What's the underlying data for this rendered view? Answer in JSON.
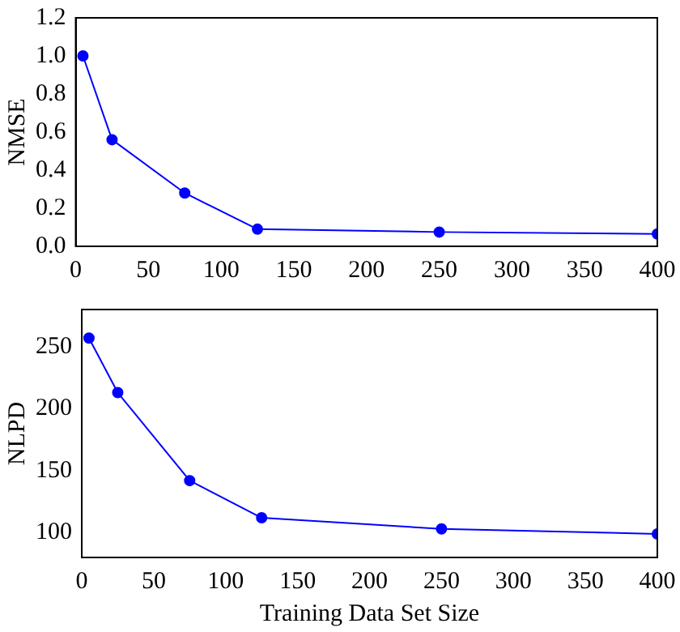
{
  "chart_data": [
    {
      "type": "line",
      "ylabel": "NMSE",
      "x": [
        5,
        25,
        75,
        125,
        250,
        400
      ],
      "series": [
        {
          "color": "#0000ff",
          "values": [
            1.0,
            0.56,
            0.28,
            0.09,
            0.075,
            0.065
          ]
        }
      ],
      "xlim": [
        0,
        400
      ],
      "xticks": [
        0,
        50,
        100,
        150,
        200,
        250,
        300,
        350,
        400
      ],
      "ylim": [
        0,
        1.2
      ],
      "yticks": [
        {
          "value": 0,
          "label": "0.0"
        },
        0.2,
        0.4,
        0.6,
        0.8,
        {
          "value": 1,
          "label": "1.0"
        },
        1.2
      ],
      "grid": false,
      "legend": false,
      "marker": "circle",
      "line_style": "solid"
    },
    {
      "type": "line",
      "xlabel": "Training Data Set Size",
      "ylabel": "NLPD",
      "x": [
        5,
        25,
        75,
        125,
        250,
        400
      ],
      "series": [
        {
          "color": "#0000ff",
          "values": [
            257,
            213,
            142,
            112,
            103,
            99
          ]
        }
      ],
      "xlim": [
        0,
        400
      ],
      "xticks": [
        0,
        50,
        100,
        150,
        200,
        250,
        300,
        350,
        400
      ],
      "ylim": [
        80,
        280
      ],
      "yticks": [
        100,
        150,
        200,
        250
      ],
      "grid": false,
      "legend": false,
      "marker": "circle",
      "line_style": "solid"
    }
  ]
}
